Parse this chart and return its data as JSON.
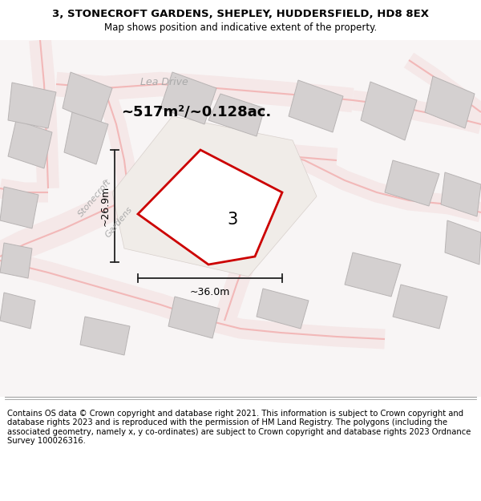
{
  "title": "3, STONECROFT GARDENS, SHEPLEY, HUDDERSFIELD, HD8 8EX",
  "subtitle": "Map shows position and indicative extent of the property.",
  "area_label": "~517m²/~0.128ac.",
  "plot_number": "3",
  "width_label": "~36.0m",
  "height_label": "~26.9m",
  "footer": "Contains OS data © Crown copyright and database right 2021. This information is subject to Crown copyright and database rights 2023 and is reproduced with the permission of HM Land Registry. The polygons (including the associated geometry, namely x, y co-ordinates) are subject to Crown copyright and database rights 2023 Ordnance Survey 100026316.",
  "road_color": "#f2b8b8",
  "road_fill": "#f5e8e8",
  "building_fill": "#d4d0d0",
  "building_edge": "#b8b4b4",
  "plot_edge": "#cc0000",
  "dim_line_color": "#222222",
  "street_label_color": "#aaaaaa",
  "title_fontsize": 9.5,
  "subtitle_fontsize": 8.5,
  "area_fontsize": 13,
  "plot_num_fontsize": 15,
  "dim_fontsize": 9,
  "footer_fontsize": 7.2,
  "street_fontsize": 8,
  "lea_fontsize": 9
}
